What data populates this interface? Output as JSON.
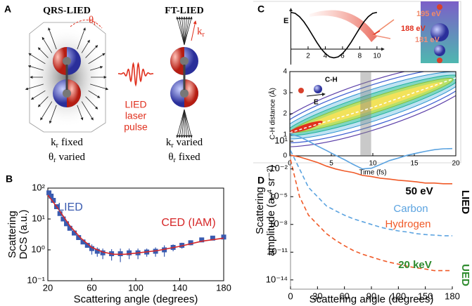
{
  "diagram": {
    "label": "A",
    "methods": [
      {
        "title": "QRS-LIED",
        "angle_symbol": {
          "main": "θ",
          "sub": "r"
        },
        "captions": [
          {
            "main": "k",
            "sub": "r",
            "rest": "fixed"
          },
          {
            "main": "θ",
            "sub": "r",
            "rest": "varied"
          }
        ]
      },
      {
        "title": "FT-LIED",
        "angle_symbol": {
          "main": "k",
          "sub": "r"
        },
        "captions": [
          {
            "main": "k",
            "sub": "r",
            "rest": "varied"
          },
          {
            "main": "θ",
            "sub": "r",
            "rest": "fixed"
          }
        ]
      }
    ],
    "pulse_label": [
      "LIED",
      "laser",
      "pulse"
    ]
  },
  "chart_data": [
    {
      "type": "line",
      "panel": "B",
      "xlabel": "Scattering angle (degrees)",
      "ylabel": [
        "Scattering",
        "DCS (a.u.)"
      ],
      "xlim": [
        20,
        180
      ],
      "ylim": [
        0.1,
        100
      ],
      "ylog": true,
      "xticks": [
        20,
        60,
        100,
        140,
        180
      ],
      "yticks": [
        {
          "value": 100,
          "label": "10²"
        },
        {
          "value": 10,
          "label": "10¹"
        },
        {
          "value": 1,
          "label": "10⁰"
        },
        {
          "value": 0.1,
          "label": "10⁻¹"
        }
      ],
      "series": [
        {
          "name": "LIED",
          "color": "#3a5bb0",
          "marker": "square",
          "x": [
            21,
            23,
            25,
            28,
            31,
            34,
            37,
            40,
            44,
            48,
            52,
            56,
            60,
            65,
            70,
            78,
            86,
            94,
            102,
            110,
            118,
            126,
            134,
            142,
            150,
            160,
            170,
            180
          ],
          "values": [
            70,
            55,
            40,
            25,
            15,
            10,
            7,
            5,
            3.5,
            2.5,
            1.8,
            1.4,
            1.1,
            0.9,
            0.8,
            0.75,
            0.75,
            0.8,
            0.8,
            0.85,
            0.9,
            1.0,
            1.2,
            1.4,
            1.7,
            2.1,
            2.4,
            2.6
          ],
          "errors": [
            null,
            null,
            null,
            null,
            null,
            null,
            null,
            null,
            null,
            null,
            null,
            null,
            0.4,
            0.3,
            0.3,
            0.3,
            0.35,
            0.3,
            0.3,
            0.25,
            0.3,
            0.4,
            0.3,
            0.3,
            0.3,
            null,
            null,
            null
          ]
        },
        {
          "name": "CED (IAM)",
          "color": "#d62728",
          "x": [
            20,
            25,
            30,
            35,
            40,
            50,
            60,
            70,
            80,
            90,
            100,
            120,
            140,
            160,
            180
          ],
          "values": [
            60,
            35,
            20,
            11,
            6,
            2.4,
            1.2,
            0.85,
            0.72,
            0.72,
            0.78,
            0.95,
            1.3,
            1.9,
            2.4
          ]
        }
      ]
    },
    {
      "type": "line",
      "panel": "C",
      "ylabel": "E",
      "xlim": [
        0,
        10.5
      ],
      "ylim": [
        -1,
        1
      ],
      "xticks": [
        2,
        4,
        6,
        8,
        10
      ],
      "color": "#000000",
      "x": [
        0,
        0.5,
        1,
        1.5,
        2,
        2.5,
        3,
        3.5,
        4,
        4.5,
        5,
        5.5,
        6,
        6.5,
        7,
        7.5,
        8,
        8.5,
        9,
        9.5,
        10
      ],
      "values": [
        0.9,
        0.86,
        0.73,
        0.53,
        0.28,
        0,
        -0.28,
        -0.53,
        -0.73,
        -0.86,
        -0.9,
        -0.86,
        -0.73,
        -0.53,
        -0.28,
        0,
        0.28,
        0.53,
        0.73,
        0.86,
        0.9
      ],
      "annotations": [
        {
          "text": "195 eV",
          "color": "#f08a6a"
        },
        {
          "text": "188 eV",
          "color": "#e0301e"
        },
        {
          "text": "181 eV",
          "color": "#f0907a"
        }
      ]
    },
    {
      "type": "contour",
      "xlabel": "Time (fs)",
      "ylabel": "C-H distance (Å)",
      "xlim": [
        0,
        20
      ],
      "ylim": [
        0,
        4
      ],
      "xticks": [
        0,
        5,
        10,
        15,
        20
      ],
      "yticks": [
        0,
        1,
        2,
        3,
        4
      ],
      "ridge": {
        "color": "#ffffff",
        "x": [
          0,
          5,
          10,
          15,
          20
        ],
        "values": [
          1.1,
          1.7,
          2.3,
          3.0,
          3.7
        ]
      },
      "highlight_x": [
        8.5,
        9.8
      ],
      "inset_labels": [
        "C-H",
        "E"
      ]
    },
    {
      "type": "line",
      "panel": "D",
      "xlabel": "Scattering angle (degrees)",
      "ylabel": [
        "Scattering",
        "amplitude (a₀⁴ sr⁻²)"
      ],
      "xlim": [
        0,
        180
      ],
      "ylim": [
        1e-15,
        100
      ],
      "ylog": true,
      "xticks": [
        0,
        30,
        60,
        90,
        120,
        150,
        180
      ],
      "yticks": [
        {
          "value": 10,
          "label": "10¹"
        },
        {
          "value": 0.01,
          "label": "10⁻²"
        },
        {
          "value": 1e-05,
          "label": "10⁻⁵"
        },
        {
          "value": 1e-08,
          "label": "10⁻⁸"
        },
        {
          "value": 1e-11,
          "label": "10⁻¹¹"
        },
        {
          "value": 1e-14,
          "label": "10⁻¹⁴"
        }
      ],
      "x": [
        0,
        10,
        20,
        30,
        40,
        50,
        60,
        70,
        80,
        90,
        100,
        110,
        120,
        130,
        140,
        150,
        160,
        170,
        180
      ],
      "series": [
        {
          "name": "Carbon",
          "color": "#5ba3e0",
          "values": [
            60,
            30,
            10,
            3,
            1,
            0.3,
            0.1,
            0.03,
            0.01,
            0.012,
            0.03,
            0.08,
            0.15,
            0.3,
            0.5,
            0.8,
            1.2,
            1.5,
            1.6
          ]
        },
        {
          "name": "Hydrogen",
          "color": "#f05a28",
          "values": [
            0.3,
            0.2,
            0.1,
            0.05,
            0.02,
            0.01,
            0.006,
            0.004,
            0.002,
            0.0015,
            0.001,
            0.0008,
            0.0006,
            0.0005,
            0.0004,
            0.0003,
            0.0003,
            0.00025,
            0.00025
          ]
        },
        {
          "color": "#5ba3e0",
          "dash": true,
          "values": [
            1,
            0.01,
            0.0001,
            1e-05,
            1e-06,
            3e-07,
            1e-07,
            4e-08,
            2e-08,
            1e-08,
            5e-09,
            3e-09,
            2e-09,
            1.5e-09,
            1e-09,
            8e-10,
            7e-10,
            6e-10,
            6e-10
          ]
        },
        {
          "color": "#f05a28",
          "dash": true,
          "values": [
            0.1,
            1e-05,
            1e-07,
            1e-08,
            1e-09,
            2e-10,
            5e-11,
            1.5e-11,
            6e-12,
            3e-12,
            1.5e-12,
            8e-13,
            5e-13,
            3e-13,
            2e-13,
            1.5e-13,
            1e-13,
            1e-13,
            1e-13
          ]
        }
      ],
      "annotations": [
        {
          "text": "50 eV",
          "color": "#000000"
        },
        {
          "text": "20 keV",
          "color": "#2e8b2e"
        }
      ],
      "side_labels": [
        {
          "text": "LIED",
          "color": "#000000"
        },
        {
          "text": "UED",
          "color": "#2e8b2e"
        }
      ]
    }
  ]
}
